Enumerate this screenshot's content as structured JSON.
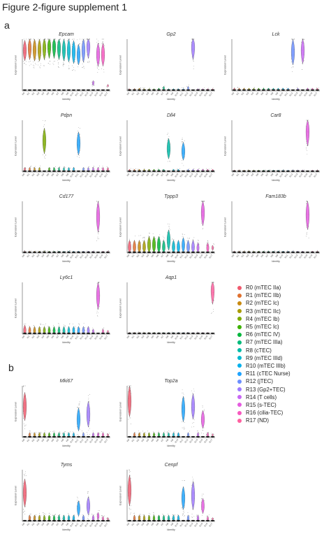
{
  "figure_title": "Figure 2-figure supplement 1",
  "panels": {
    "a": "a",
    "b": "b"
  },
  "clusters": [
    {
      "code": "R0",
      "label": "R0 (mTEC IIa)",
      "color": "#f05a6e"
    },
    {
      "code": "R1",
      "label": "R1 (mTEC IIb)",
      "color": "#e0712f"
    },
    {
      "code": "R2",
      "label": "R2 (mTEC Ic)",
      "color": "#c98a10"
    },
    {
      "code": "R3",
      "label": "R3 (mTEC IIc)",
      "color": "#a99b00"
    },
    {
      "code": "R4",
      "label": "R4 (mTEC Ib)",
      "color": "#7cab00"
    },
    {
      "code": "R5",
      "label": "R5 (mTEC Ic)",
      "color": "#3db200"
    },
    {
      "code": "R6",
      "label": "R6 (mTEC IV)",
      "color": "#00b63c"
    },
    {
      "code": "R7",
      "label": "R7 (mTEC IIIa)",
      "color": "#00ba7a"
    },
    {
      "code": "R8",
      "label": "R8 (cTEC)",
      "color": "#00bba8"
    },
    {
      "code": "R9",
      "label": "R9 (mTEC IIId)",
      "color": "#00b8cf"
    },
    {
      "code": "R10",
      "label": "R10 (mTEC IIIb)",
      "color": "#00b0ec"
    },
    {
      "code": "R11",
      "label": "R11 (cTEC Nurse)",
      "color": "#1ea3ff"
    },
    {
      "code": "R12",
      "label": "R12 (jTEC)",
      "color": "#6c8fff"
    },
    {
      "code": "R13",
      "label": "R13 (Gp2+TEC)",
      "color": "#9f7aff"
    },
    {
      "code": "R14",
      "label": "R14 (T cells)",
      "color": "#c867f5"
    },
    {
      "code": "R15",
      "label": "R15 (s-TEC)",
      "color": "#e55be0"
    },
    {
      "code": "R16",
      "label": "R16 (cilia-TEC)",
      "color": "#f759bf"
    },
    {
      "code": "R17",
      "label": "R17 (ND)",
      "color": "#ff60a0"
    }
  ],
  "chart_data": [
    {
      "type": "violin",
      "panel": "a",
      "title": "Epcam",
      "xlabel": "Identity",
      "ylabel": "Expression Level",
      "categories": [
        "R0",
        "R1",
        "R2",
        "R3",
        "R4",
        "R5",
        "R6",
        "R7",
        "R8",
        "R9",
        "R10",
        "R11",
        "R12",
        "R13",
        "R14",
        "R15",
        "R16",
        "R17"
      ],
      "values": [
        0.78,
        0.85,
        0.8,
        0.8,
        0.85,
        0.9,
        0.9,
        0.85,
        0.8,
        0.78,
        0.75,
        0.7,
        0.8,
        0.9,
        0.15,
        0.7,
        0.7,
        0.1
      ],
      "spread": [
        0.4,
        0.5,
        0.45,
        0.45,
        0.5,
        0.55,
        0.55,
        0.5,
        0.45,
        0.45,
        0.45,
        0.4,
        0.5,
        0.55,
        0.1,
        0.45,
        0.45,
        0.05
      ]
    },
    {
      "type": "violin",
      "panel": "a",
      "title": "Gp2",
      "xlabel": "Identity",
      "ylabel": "Expression Level",
      "categories": [
        "R0",
        "R1",
        "R2",
        "R3",
        "R4",
        "R5",
        "R6",
        "R7",
        "R8",
        "R9",
        "R10",
        "R11",
        "R12",
        "R13",
        "R14",
        "R15",
        "R16",
        "R17"
      ],
      "values": [
        0.02,
        0.02,
        0.03,
        0.02,
        0.02,
        0.02,
        0.03,
        0.05,
        0.02,
        0.02,
        0.02,
        0.02,
        0.05,
        0.9,
        0.02,
        0.02,
        0.02,
        0.02
      ],
      "spread": [
        0.05,
        0.05,
        0.05,
        0.05,
        0.05,
        0.05,
        0.05,
        0.08,
        0.05,
        0.05,
        0.05,
        0.05,
        0.08,
        0.6,
        0.05,
        0.05,
        0.05,
        0.05
      ]
    },
    {
      "type": "violin",
      "panel": "a",
      "title": "Lck",
      "xlabel": "Identity",
      "ylabel": "Expression Level",
      "categories": [
        "R0",
        "R1",
        "R2",
        "R3",
        "R4",
        "R5",
        "R6",
        "R7",
        "R8",
        "R9",
        "R10",
        "R11",
        "R12",
        "R13",
        "R14",
        "R15",
        "R16",
        "R17"
      ],
      "values": [
        0.03,
        0.03,
        0.03,
        0.03,
        0.03,
        0.03,
        0.03,
        0.03,
        0.03,
        0.03,
        0.03,
        0.03,
        0.75,
        0.03,
        0.8,
        0.03,
        0.03,
        0.03
      ],
      "spread": [
        0.05,
        0.05,
        0.05,
        0.05,
        0.05,
        0.05,
        0.05,
        0.05,
        0.05,
        0.05,
        0.05,
        0.05,
        0.5,
        0.05,
        0.55,
        0.05,
        0.05,
        0.05
      ]
    },
    {
      "type": "violin",
      "panel": "a",
      "title": "Pdpn",
      "xlabel": "Identity",
      "ylabel": "Expression Level",
      "categories": [
        "R0",
        "R1",
        "R2",
        "R3",
        "R4",
        "R5",
        "R6",
        "R7",
        "R8",
        "R9",
        "R10",
        "R11",
        "R12",
        "R13",
        "R14",
        "R15",
        "R16",
        "R17"
      ],
      "values": [
        0.05,
        0.05,
        0.05,
        0.05,
        0.6,
        0.05,
        0.05,
        0.05,
        0.05,
        0.05,
        0.05,
        0.55,
        0.05,
        0.05,
        0.05,
        0.05,
        0.05,
        0.05
      ],
      "spread": [
        0.08,
        0.08,
        0.08,
        0.08,
        0.5,
        0.08,
        0.08,
        0.08,
        0.08,
        0.08,
        0.08,
        0.45,
        0.08,
        0.08,
        0.08,
        0.08,
        0.08,
        0.08
      ]
    },
    {
      "type": "violin",
      "panel": "a",
      "title": "Dll4",
      "xlabel": "Identity",
      "ylabel": "Expression Level",
      "categories": [
        "R0",
        "R1",
        "R2",
        "R3",
        "R4",
        "R5",
        "R6",
        "R7",
        "R8",
        "R9",
        "R10",
        "R11",
        "R12",
        "R13",
        "R14",
        "R15",
        "R16",
        "R17"
      ],
      "values": [
        0.03,
        0.03,
        0.03,
        0.03,
        0.03,
        0.03,
        0.03,
        0.03,
        0.45,
        0.03,
        0.03,
        0.4,
        0.03,
        0.03,
        0.03,
        0.03,
        0.03,
        0.03
      ],
      "spread": [
        0.05,
        0.05,
        0.05,
        0.05,
        0.05,
        0.05,
        0.05,
        0.05,
        0.4,
        0.05,
        0.05,
        0.35,
        0.05,
        0.05,
        0.05,
        0.05,
        0.05,
        0.05
      ]
    },
    {
      "type": "violin",
      "panel": "a",
      "title": "Car8",
      "xlabel": "Identity",
      "ylabel": "Expression Level",
      "categories": [
        "R0",
        "R1",
        "R2",
        "R3",
        "R4",
        "R5",
        "R6",
        "R7",
        "R8",
        "R9",
        "R10",
        "R11",
        "R12",
        "R13",
        "R14",
        "R15",
        "R16",
        "R17"
      ],
      "values": [
        0.02,
        0.02,
        0.02,
        0.02,
        0.02,
        0.02,
        0.02,
        0.02,
        0.02,
        0.02,
        0.02,
        0.02,
        0.02,
        0.02,
        0.02,
        0.8,
        0.02,
        0.02
      ],
      "spread": [
        0.04,
        0.04,
        0.04,
        0.04,
        0.04,
        0.04,
        0.04,
        0.04,
        0.04,
        0.04,
        0.04,
        0.04,
        0.04,
        0.04,
        0.04,
        0.6,
        0.04,
        0.04
      ]
    },
    {
      "type": "violin",
      "panel": "a",
      "title": "Cd177",
      "xlabel": "Identity",
      "ylabel": "Expression Level",
      "categories": [
        "R0",
        "R1",
        "R2",
        "R3",
        "R4",
        "R5",
        "R6",
        "R7",
        "R8",
        "R9",
        "R10",
        "R11",
        "R12",
        "R13",
        "R14",
        "R15",
        "R16",
        "R17"
      ],
      "values": [
        0.02,
        0.02,
        0.02,
        0.02,
        0.02,
        0.02,
        0.02,
        0.02,
        0.02,
        0.02,
        0.02,
        0.02,
        0.02,
        0.02,
        0.02,
        0.7,
        0.02,
        0.02
      ],
      "spread": [
        0.04,
        0.04,
        0.04,
        0.04,
        0.04,
        0.04,
        0.04,
        0.04,
        0.04,
        0.04,
        0.04,
        0.04,
        0.04,
        0.04,
        0.04,
        0.6,
        0.04,
        0.04
      ]
    },
    {
      "type": "violin",
      "panel": "a",
      "title": "Tppp3",
      "xlabel": "Identity",
      "ylabel": "Expression Level",
      "categories": [
        "R0",
        "R1",
        "R2",
        "R3",
        "R4",
        "R5",
        "R6",
        "R7",
        "R8",
        "R9",
        "R10",
        "R11",
        "R12",
        "R13",
        "R14",
        "R15",
        "R16",
        "R17"
      ],
      "values": [
        0.1,
        0.1,
        0.1,
        0.1,
        0.15,
        0.15,
        0.15,
        0.1,
        0.25,
        0.1,
        0.1,
        0.15,
        0.1,
        0.1,
        0.1,
        0.8,
        0.1,
        0.1
      ],
      "spread": [
        0.3,
        0.3,
        0.3,
        0.3,
        0.35,
        0.35,
        0.35,
        0.3,
        0.4,
        0.3,
        0.3,
        0.3,
        0.3,
        0.3,
        0.2,
        0.55,
        0.2,
        0.1
      ]
    },
    {
      "type": "violin",
      "panel": "a",
      "title": "Fam183b",
      "xlabel": "Identity",
      "ylabel": "Expression Level",
      "categories": [
        "R0",
        "R1",
        "R2",
        "R3",
        "R4",
        "R5",
        "R6",
        "R7",
        "R8",
        "R9",
        "R10",
        "R11",
        "R12",
        "R13",
        "R14",
        "R15",
        "R16",
        "R17"
      ],
      "values": [
        0.02,
        0.02,
        0.02,
        0.02,
        0.02,
        0.02,
        0.02,
        0.02,
        0.02,
        0.02,
        0.02,
        0.02,
        0.02,
        0.02,
        0.02,
        0.75,
        0.02,
        0.02
      ],
      "spread": [
        0.04,
        0.04,
        0.04,
        0.04,
        0.04,
        0.04,
        0.04,
        0.04,
        0.04,
        0.04,
        0.04,
        0.04,
        0.04,
        0.04,
        0.04,
        0.6,
        0.04,
        0.04
      ]
    },
    {
      "type": "violin",
      "panel": "a",
      "title": "Ly6c1",
      "xlabel": "Identity",
      "ylabel": "Expression Level",
      "categories": [
        "R0",
        "R1",
        "R2",
        "R3",
        "R4",
        "R5",
        "R6",
        "R7",
        "R8",
        "R9",
        "R10",
        "R11",
        "R12",
        "R13",
        "R14",
        "R15",
        "R16",
        "R17"
      ],
      "values": [
        0.05,
        0.05,
        0.05,
        0.05,
        0.05,
        0.05,
        0.05,
        0.05,
        0.05,
        0.05,
        0.05,
        0.05,
        0.05,
        0.05,
        0.05,
        0.75,
        0.05,
        0.05
      ],
      "spread": [
        0.25,
        0.2,
        0.2,
        0.2,
        0.2,
        0.2,
        0.2,
        0.2,
        0.2,
        0.2,
        0.2,
        0.2,
        0.2,
        0.2,
        0.1,
        0.55,
        0.1,
        0.05
      ]
    },
    {
      "type": "violin",
      "panel": "a",
      "title": "Aqp1",
      "xlabel": "Identity",
      "ylabel": "Expression Level",
      "categories": [
        "R0",
        "R1",
        "R2",
        "R3",
        "R4",
        "R5",
        "R6",
        "R7",
        "R8",
        "R9",
        "R10",
        "R11",
        "R12",
        "R13",
        "R14",
        "R15",
        "R16",
        "R17"
      ],
      "values": [
        0.02,
        0.02,
        0.02,
        0.02,
        0.02,
        0.02,
        0.02,
        0.02,
        0.02,
        0.02,
        0.02,
        0.02,
        0.02,
        0.02,
        0.02,
        0.02,
        0.02,
        0.9
      ],
      "spread": [
        0.03,
        0.03,
        0.03,
        0.03,
        0.03,
        0.03,
        0.03,
        0.03,
        0.03,
        0.03,
        0.03,
        0.03,
        0.03,
        0.03,
        0.03,
        0.03,
        0.03,
        0.65
      ]
    },
    {
      "type": "violin",
      "panel": "b",
      "title": "Mki67",
      "xlabel": "Identity",
      "ylabel": "Expression Level",
      "categories": [
        "R0",
        "R1",
        "R2",
        "R3",
        "R4",
        "R5",
        "R6",
        "R7",
        "R8",
        "R9",
        "R10",
        "R11",
        "R12",
        "R13",
        "R14",
        "R15",
        "R16",
        "R17"
      ],
      "values": [
        0.6,
        0.05,
        0.05,
        0.05,
        0.05,
        0.05,
        0.05,
        0.05,
        0.05,
        0.05,
        0.05,
        0.35,
        0.05,
        0.45,
        0.05,
        0.05,
        0.05,
        0.05
      ],
      "spread": [
        0.55,
        0.1,
        0.1,
        0.1,
        0.1,
        0.1,
        0.1,
        0.1,
        0.1,
        0.1,
        0.1,
        0.45,
        0.1,
        0.5,
        0.1,
        0.1,
        0.1,
        0.05
      ]
    },
    {
      "type": "violin",
      "panel": "b",
      "title": "Top2a",
      "xlabel": "Identity",
      "ylabel": "Expression Level",
      "categories": [
        "R0",
        "R1",
        "R2",
        "R3",
        "R4",
        "R5",
        "R6",
        "R7",
        "R8",
        "R9",
        "R10",
        "R11",
        "R12",
        "R13",
        "R14",
        "R15",
        "R16",
        "R17"
      ],
      "values": [
        0.7,
        0.05,
        0.05,
        0.05,
        0.05,
        0.05,
        0.05,
        0.05,
        0.05,
        0.05,
        0.05,
        0.55,
        0.05,
        0.6,
        0.05,
        0.35,
        0.05,
        0.05
      ],
      "spread": [
        0.6,
        0.1,
        0.1,
        0.1,
        0.1,
        0.1,
        0.1,
        0.1,
        0.1,
        0.1,
        0.1,
        0.5,
        0.1,
        0.5,
        0.1,
        0.35,
        0.1,
        0.05
      ]
    },
    {
      "type": "violin",
      "panel": "b",
      "title": "Tyms",
      "xlabel": "Identity",
      "ylabel": "Expression Level",
      "categories": [
        "R0",
        "R1",
        "R2",
        "R3",
        "R4",
        "R5",
        "R6",
        "R7",
        "R8",
        "R9",
        "R10",
        "R11",
        "R12",
        "R13",
        "R14",
        "R15",
        "R16",
        "R17"
      ],
      "values": [
        0.55,
        0.05,
        0.05,
        0.05,
        0.05,
        0.05,
        0.05,
        0.05,
        0.05,
        0.05,
        0.05,
        0.25,
        0.05,
        0.3,
        0.05,
        0.1,
        0.05,
        0.05
      ],
      "spread": [
        0.55,
        0.15,
        0.15,
        0.15,
        0.15,
        0.15,
        0.15,
        0.15,
        0.15,
        0.15,
        0.15,
        0.3,
        0.15,
        0.35,
        0.15,
        0.15,
        0.1,
        0.05
      ]
    },
    {
      "type": "violin",
      "panel": "b",
      "title": "Cenpf",
      "xlabel": "Identity",
      "ylabel": "Expression Level",
      "categories": [
        "R0",
        "R1",
        "R2",
        "R3",
        "R4",
        "R5",
        "R6",
        "R7",
        "R8",
        "R9",
        "R10",
        "R11",
        "R12",
        "R13",
        "R14",
        "R15",
        "R16",
        "R17"
      ],
      "values": [
        0.6,
        0.05,
        0.05,
        0.05,
        0.05,
        0.05,
        0.05,
        0.05,
        0.05,
        0.05,
        0.05,
        0.45,
        0.05,
        0.5,
        0.05,
        0.3,
        0.05,
        0.05
      ],
      "spread": [
        0.6,
        0.15,
        0.15,
        0.15,
        0.15,
        0.15,
        0.15,
        0.15,
        0.15,
        0.15,
        0.15,
        0.45,
        0.15,
        0.55,
        0.15,
        0.3,
        0.1,
        0.05
      ]
    }
  ]
}
